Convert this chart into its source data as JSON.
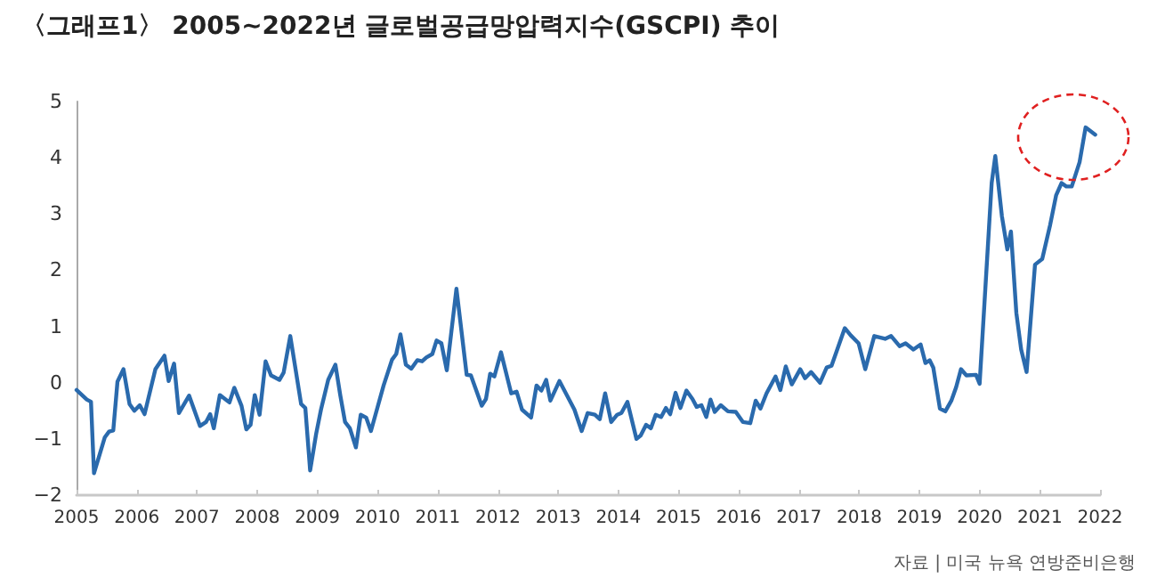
{
  "chart_data": {
    "type": "line",
    "title": "〈그래프1〉 2005~2022년 글로벌공급망압력지수(GSCPI) 추이",
    "annotations": [
      "자료 | 미국 뉴욕 연방준비은행"
    ],
    "xlim": [
      2005,
      2022
    ],
    "xticks": [
      2005,
      2006,
      2007,
      2008,
      2009,
      2010,
      2011,
      2012,
      2013,
      2014,
      2015,
      2016,
      2017,
      2018,
      2019,
      2020,
      2021,
      2022
    ],
    "ylim": [
      -2,
      5
    ],
    "yticks": [
      -2,
      -1,
      0,
      1,
      2,
      3,
      4,
      5
    ],
    "grid": false,
    "marker": "none",
    "line_style": "solid",
    "series": [
      {
        "color": "#2a6aad",
        "x": [
          2005.0,
          2005.17,
          2005.24,
          2005.29,
          2005.47,
          2005.54,
          2005.61,
          2005.68,
          2005.78,
          2005.88,
          2005.96,
          2006.05,
          2006.13,
          2006.31,
          2006.46,
          2006.53,
          2006.62,
          2006.7,
          2006.87,
          2007.05,
          2007.15,
          2007.22,
          2007.28,
          2007.38,
          2007.54,
          2007.62,
          2007.74,
          2007.82,
          2007.89,
          2007.96,
          2008.04,
          2008.14,
          2008.23,
          2008.37,
          2008.44,
          2008.55,
          2008.73,
          2008.8,
          2008.88,
          2008.98,
          2009.06,
          2009.18,
          2009.3,
          2009.38,
          2009.46,
          2009.54,
          2009.64,
          2009.72,
          2009.81,
          2009.89,
          2010.1,
          2010.24,
          2010.31,
          2010.38,
          2010.47,
          2010.56,
          2010.66,
          2010.74,
          2010.81,
          2010.91,
          2010.98,
          2011.06,
          2011.15,
          2011.31,
          2011.48,
          2011.55,
          2011.73,
          2011.8,
          2011.87,
          2011.94,
          2012.05,
          2012.22,
          2012.31,
          2012.4,
          2012.55,
          2012.64,
          2012.72,
          2012.8,
          2012.87,
          2013.02,
          2013.27,
          2013.39,
          2013.49,
          2013.61,
          2013.69,
          2013.78,
          2013.88,
          2013.98,
          2014.05,
          2014.15,
          2014.3,
          2014.37,
          2014.46,
          2014.54,
          2014.62,
          2014.71,
          2014.79,
          2014.86,
          2014.95,
          2015.03,
          2015.13,
          2015.23,
          2015.3,
          2015.38,
          2015.46,
          2015.53,
          2015.6,
          2015.7,
          2015.82,
          2015.95,
          2016.07,
          2016.19,
          2016.28,
          2016.36,
          2016.46,
          2016.61,
          2016.69,
          2016.78,
          2016.88,
          2017.02,
          2017.1,
          2017.2,
          2017.35,
          2017.46,
          2017.54,
          2017.76,
          2017.86,
          2017.99,
          2018.1,
          2018.25,
          2018.43,
          2018.53,
          2018.67,
          2018.77,
          2018.9,
          2019.02,
          2019.1,
          2019.17,
          2019.23,
          2019.34,
          2019.43,
          2019.53,
          2019.61,
          2019.69,
          2019.78,
          2019.94,
          2020.0,
          2020.2,
          2020.26,
          2020.37,
          2020.46,
          2020.52,
          2020.61,
          2020.69,
          2020.78,
          2020.92,
          2021.04,
          2021.17,
          2021.27,
          2021.36,
          2021.44,
          2021.53,
          2021.66,
          2021.76,
          2021.92
        ],
        "values": [
          -0.13,
          -0.3,
          -0.34,
          -1.61,
          -0.97,
          -0.87,
          -0.85,
          0.02,
          0.24,
          -0.38,
          -0.5,
          -0.4,
          -0.56,
          0.24,
          0.48,
          0.03,
          0.34,
          -0.54,
          -0.23,
          -0.77,
          -0.7,
          -0.56,
          -0.81,
          -0.22,
          -0.35,
          -0.09,
          -0.41,
          -0.83,
          -0.75,
          -0.22,
          -0.57,
          0.38,
          0.13,
          0.05,
          0.18,
          0.83,
          -0.38,
          -0.45,
          -1.56,
          -0.91,
          -0.48,
          0.05,
          0.32,
          -0.22,
          -0.7,
          -0.81,
          -1.15,
          -0.57,
          -0.62,
          -0.86,
          -0.05,
          0.41,
          0.51,
          0.86,
          0.32,
          0.25,
          0.4,
          0.38,
          0.45,
          0.51,
          0.75,
          0.7,
          0.22,
          1.67,
          0.14,
          0.13,
          -0.41,
          -0.29,
          0.16,
          0.11,
          0.54,
          -0.19,
          -0.16,
          -0.48,
          -0.62,
          -0.05,
          -0.14,
          0.05,
          -0.32,
          0.03,
          -0.48,
          -0.86,
          -0.54,
          -0.57,
          -0.65,
          -0.19,
          -0.7,
          -0.57,
          -0.54,
          -0.34,
          -1.0,
          -0.94,
          -0.75,
          -0.81,
          -0.57,
          -0.61,
          -0.45,
          -0.56,
          -0.18,
          -0.45,
          -0.14,
          -0.29,
          -0.43,
          -0.4,
          -0.61,
          -0.3,
          -0.52,
          -0.4,
          -0.51,
          -0.52,
          -0.7,
          -0.72,
          -0.32,
          -0.46,
          -0.19,
          0.11,
          -0.13,
          0.29,
          -0.03,
          0.24,
          0.08,
          0.19,
          0.0,
          0.27,
          0.3,
          0.97,
          0.84,
          0.7,
          0.24,
          0.83,
          0.78,
          0.83,
          0.65,
          0.7,
          0.59,
          0.68,
          0.35,
          0.4,
          0.27,
          -0.46,
          -0.51,
          -0.32,
          -0.08,
          0.24,
          0.13,
          0.14,
          -0.02,
          3.55,
          4.03,
          2.96,
          2.37,
          2.69,
          1.24,
          0.59,
          0.19,
          2.1,
          2.2,
          2.8,
          3.33,
          3.55,
          3.49,
          3.49,
          3.92,
          4.54,
          4.41
        ]
      }
    ]
  }
}
